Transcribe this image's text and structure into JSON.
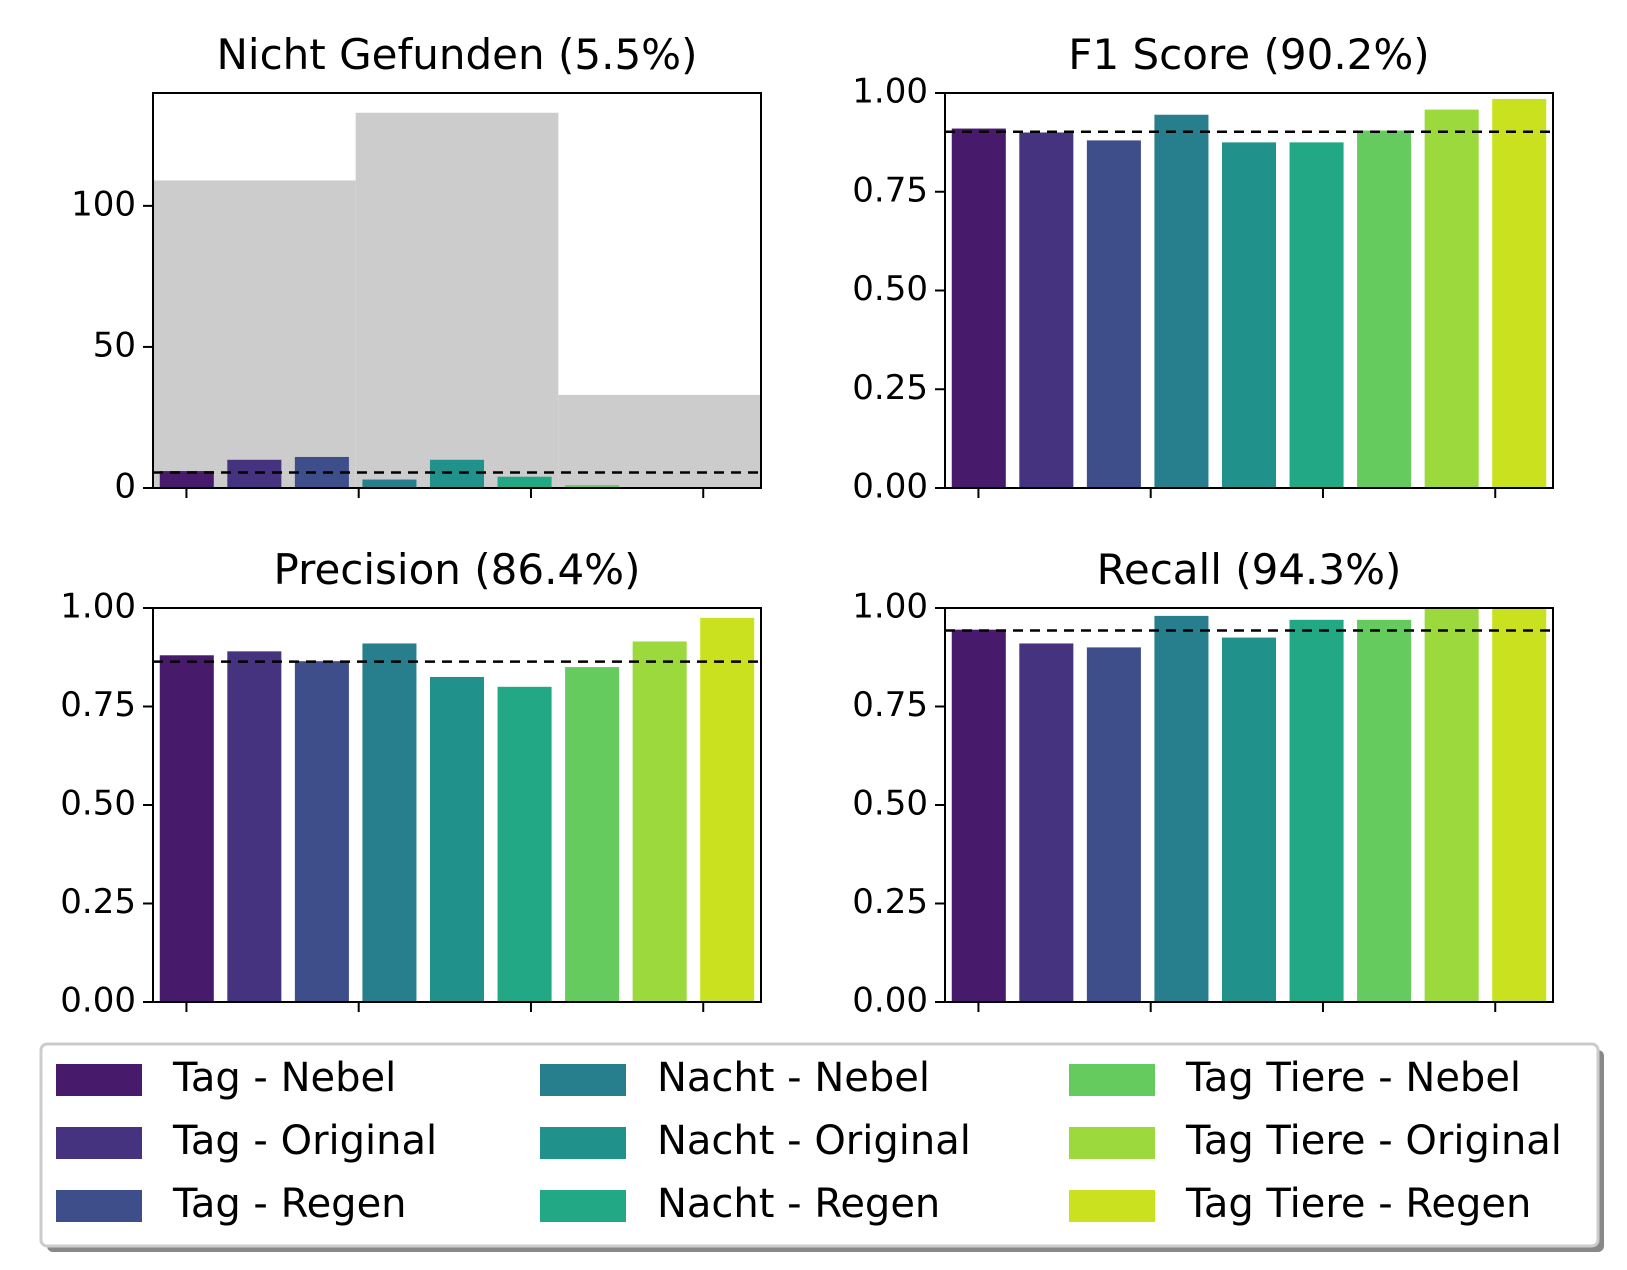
{
  "chart_data": [
    {
      "type": "bar",
      "title": "Nicht Gefunden (5.5%)",
      "xlabel": "",
      "ylabel": "",
      "ylim": [
        0,
        140
      ],
      "yticks": [
        0,
        50,
        100
      ],
      "ytick_labels": [
        "0",
        "50",
        "100"
      ],
      "reference_line": 5.5,
      "background_bars": [
        {
          "group": "Tag",
          "value": 109
        },
        {
          "group": "Nacht",
          "value": 133
        },
        {
          "group": "Tag Tiere",
          "value": 33
        }
      ],
      "categories": [
        "Tag - Nebel",
        "Tag - Original",
        "Tag - Regen",
        "Nacht - Nebel",
        "Nacht - Original",
        "Nacht - Regen",
        "Tag Tiere - Nebel",
        "Tag Tiere - Original",
        "Tag Tiere - Regen"
      ],
      "values": [
        6,
        10,
        11,
        3,
        10,
        4,
        1,
        0,
        0
      ]
    },
    {
      "type": "bar",
      "title": "F1 Score (90.2%)",
      "xlabel": "",
      "ylabel": "",
      "ylim": [
        0,
        1
      ],
      "yticks": [
        0,
        0.25,
        0.5,
        0.75,
        1
      ],
      "ytick_labels": [
        "0.00",
        "0.25",
        "0.50",
        "0.75",
        "1.00"
      ],
      "reference_line": 0.902,
      "categories": [
        "Tag - Nebel",
        "Tag - Original",
        "Tag - Regen",
        "Nacht - Nebel",
        "Nacht - Original",
        "Nacht - Regen",
        "Tag Tiere - Nebel",
        "Tag Tiere - Original",
        "Tag Tiere - Regen"
      ],
      "values": [
        0.91,
        0.9,
        0.88,
        0.945,
        0.875,
        0.875,
        0.905,
        0.958,
        0.985
      ]
    },
    {
      "type": "bar",
      "title": "Precision (86.4%)",
      "xlabel": "",
      "ylabel": "",
      "ylim": [
        0,
        1
      ],
      "yticks": [
        0,
        0.25,
        0.5,
        0.75,
        1
      ],
      "ytick_labels": [
        "0.00",
        "0.25",
        "0.50",
        "0.75",
        "1.00"
      ],
      "reference_line": 0.864,
      "categories": [
        "Tag - Nebel",
        "Tag - Original",
        "Tag - Regen",
        "Nacht - Nebel",
        "Nacht - Original",
        "Nacht - Regen",
        "Tag Tiere - Nebel",
        "Tag Tiere - Original",
        "Tag Tiere - Regen"
      ],
      "values": [
        0.88,
        0.89,
        0.865,
        0.91,
        0.825,
        0.8,
        0.85,
        0.915,
        0.975
      ]
    },
    {
      "type": "bar",
      "title": "Recall (94.3%)",
      "xlabel": "",
      "ylabel": "",
      "ylim": [
        0,
        1
      ],
      "yticks": [
        0,
        0.25,
        0.5,
        0.75,
        1
      ],
      "ytick_labels": [
        "0.00",
        "0.25",
        "0.50",
        "0.75",
        "1.00"
      ],
      "reference_line": 0.943,
      "categories": [
        "Tag - Nebel",
        "Tag - Original",
        "Tag - Regen",
        "Nacht - Nebel",
        "Nacht - Original",
        "Nacht - Regen",
        "Tag Tiere - Nebel",
        "Tag Tiere - Original",
        "Tag Tiere - Regen"
      ],
      "values": [
        0.945,
        0.91,
        0.9,
        0.98,
        0.925,
        0.97,
        0.97,
        1.0,
        1.0
      ]
    }
  ],
  "legend": {
    "placement": "bottom",
    "entries": [
      {
        "label": "Tag - Nebel",
        "color": "#481a6c"
      },
      {
        "label": "Tag - Original",
        "color": "#46337f"
      },
      {
        "label": "Tag - Regen",
        "color": "#3d4e8a"
      },
      {
        "label": "Nacht - Nebel",
        "color": "#277f8e"
      },
      {
        "label": "Nacht - Original",
        "color": "#21918c"
      },
      {
        "label": "Nacht - Regen",
        "color": "#22a884"
      },
      {
        "label": "Tag Tiere - Nebel",
        "color": "#65cb5e"
      },
      {
        "label": "Tag Tiere - Original",
        "color": "#9bd93c"
      },
      {
        "label": "Tag Tiere - Regen",
        "color": "#cae11f"
      }
    ]
  },
  "colors": {
    "background_bar": "#cccccc",
    "reference_line": "#000000",
    "axes": "#000000"
  }
}
